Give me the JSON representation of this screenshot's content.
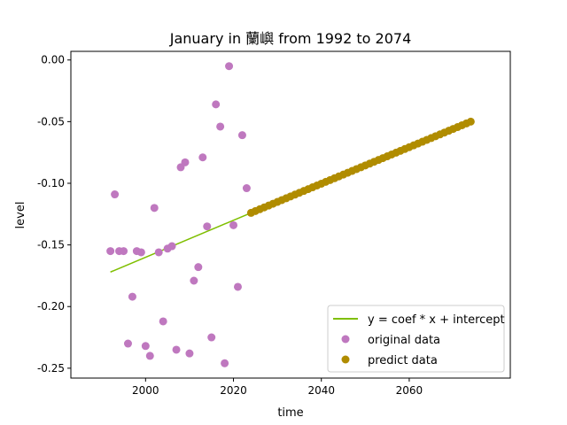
{
  "chart_data": {
    "type": "scatter",
    "title": "January in 蘭嶼 from 1992 to 2074",
    "xlabel": "time",
    "ylabel": "level",
    "xlim": [
      1983,
      2083
    ],
    "ylim": [
      -0.258,
      0.007
    ],
    "xticks": [
      2000,
      2020,
      2040,
      2060
    ],
    "yticks": [
      0.0,
      -0.05,
      -0.1,
      -0.15,
      -0.2,
      -0.25
    ],
    "ytick_labels": [
      "0.00",
      "-0.05",
      "-0.10",
      "-0.15",
      "-0.20",
      "-0.25"
    ],
    "grid": false,
    "legend_position": "lower-right",
    "fit_line": {
      "name": "y = coef * x + intercept",
      "color": "#7fbf00",
      "x": [
        1992,
        2024
      ],
      "y": [
        -0.172,
        -0.124
      ]
    },
    "original": {
      "name": "original data",
      "color": "#bf78bf",
      "x": [
        1992,
        1993,
        1994,
        1995,
        1996,
        1997,
        1998,
        1999,
        2000,
        2001,
        2002,
        2003,
        2004,
        2005,
        2006,
        2007,
        2008,
        2009,
        2010,
        2011,
        2012,
        2013,
        2014,
        2015,
        2016,
        2017,
        2018,
        2019,
        2020,
        2021,
        2022,
        2023
      ],
      "y": [
        -0.155,
        -0.109,
        -0.155,
        -0.155,
        -0.23,
        -0.192,
        -0.155,
        -0.156,
        -0.232,
        -0.24,
        -0.12,
        -0.156,
        -0.212,
        -0.153,
        -0.151,
        -0.235,
        -0.087,
        -0.083,
        -0.238,
        -0.179,
        -0.168,
        -0.079,
        -0.135,
        -0.225,
        -0.036,
        -0.054,
        -0.246,
        -0.005,
        -0.134,
        -0.184,
        -0.061,
        -0.104
      ]
    },
    "predict": {
      "name": "predict data",
      "color": "#b08c00",
      "x_start": 2024,
      "x_end": 2074,
      "y_start": -0.124,
      "y_end": -0.05
    }
  }
}
